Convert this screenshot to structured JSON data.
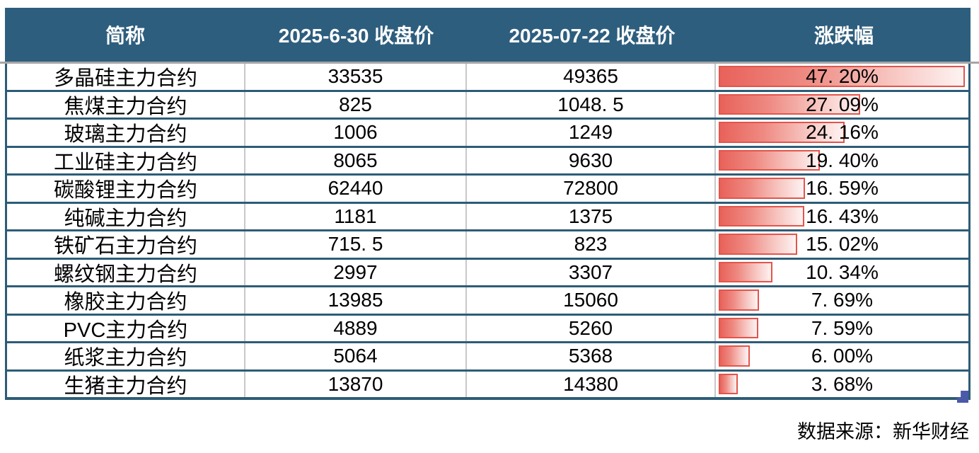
{
  "header": {
    "columns": [
      "简称",
      "2025-6-30 收盘价",
      "2025-07-22 收盘价",
      "涨跌幅"
    ]
  },
  "rows": [
    {
      "name": "多晶硅主力合约",
      "close_0630": "33535",
      "close_0722": "49365",
      "change_display": "47. 20%",
      "change_value": 47.2
    },
    {
      "name": "焦煤主力合约",
      "close_0630": "825",
      "close_0722": "1048. 5",
      "change_display": "27. 09%",
      "change_value": 27.09
    },
    {
      "name": "玻璃主力合约",
      "close_0630": "1006",
      "close_0722": "1249",
      "change_display": "24. 16%",
      "change_value": 24.16
    },
    {
      "name": "工业硅主力合约",
      "close_0630": "8065",
      "close_0722": "9630",
      "change_display": "19. 40%",
      "change_value": 19.4
    },
    {
      "name": "碳酸锂主力合约",
      "close_0630": "62440",
      "close_0722": "72800",
      "change_display": "16. 59%",
      "change_value": 16.59
    },
    {
      "name": "纯碱主力合约",
      "close_0630": "1181",
      "close_0722": "1375",
      "change_display": "16. 43%",
      "change_value": 16.43
    },
    {
      "name": "铁矿石主力合约",
      "close_0630": "715. 5",
      "close_0722": "823",
      "change_display": "15. 02%",
      "change_value": 15.02
    },
    {
      "name": "螺纹钢主力合约",
      "close_0630": "2997",
      "close_0722": "3307",
      "change_display": "10. 34%",
      "change_value": 10.34
    },
    {
      "name": "橡胶主力合约",
      "close_0630": "13985",
      "close_0722": "15060",
      "change_display": "7. 69%",
      "change_value": 7.69
    },
    {
      "name": "PVC主力合约",
      "close_0630": "4889",
      "close_0722": "5260",
      "change_display": "7. 59%",
      "change_value": 7.59
    },
    {
      "name": "纸浆主力合约",
      "close_0630": "5064",
      "close_0722": "5368",
      "change_display": "6. 00%",
      "change_value": 6.0
    },
    {
      "name": "生猪主力合约",
      "close_0630": "13870",
      "close_0722": "14380",
      "change_display": "3. 68%",
      "change_value": 3.68
    }
  ],
  "footer": {
    "source": "数据来源：新华财经"
  },
  "colors": {
    "header_bg": "#2E5E7E",
    "grid_border": "#2D5C77",
    "column_separator": "#C8C8C8",
    "top_gridline": "#A6A6A6",
    "bar_border": "#E4544B",
    "bar_gradient_start": "#E8625A",
    "bar_gradient_end": "#FDF3F2",
    "fill_handle": "#4A59A8"
  },
  "chart_data": {
    "type": "table",
    "title": "",
    "columns": [
      "简称",
      "2025-6-30 收盘价",
      "2025-07-22 收盘价",
      "涨跌幅"
    ],
    "categories": [
      "多晶硅主力合约",
      "焦煤主力合约",
      "玻璃主力合约",
      "工业硅主力合约",
      "碳酸锂主力合约",
      "纯碱主力合约",
      "铁矿石主力合约",
      "螺纹钢主力合约",
      "橡胶主力合约",
      "PVC主力合约",
      "纸浆主力合约",
      "生猪主力合约"
    ],
    "series": [
      {
        "name": "2025-6-30 收盘价",
        "values": [
          33535,
          825,
          1006,
          8065,
          62440,
          1181,
          715.5,
          2997,
          13985,
          4889,
          5064,
          13870
        ]
      },
      {
        "name": "2025-07-22 收盘价",
        "values": [
          49365,
          1048.5,
          1249,
          9630,
          72800,
          1375,
          823,
          3307,
          15060,
          5260,
          5368,
          14380
        ]
      },
      {
        "name": "涨跌幅(%)",
        "values": [
          47.2,
          27.09,
          24.16,
          19.4,
          16.59,
          16.43,
          15.02,
          10.34,
          7.69,
          7.59,
          6.0,
          3.68
        ]
      }
    ],
    "databar": {
      "column": "涨跌幅",
      "style": "red-gradient-left-to-right",
      "scale_min": 0,
      "scale_max": 47.2
    },
    "legend": "none",
    "grid": "on",
    "source_note": "数据来源：新华财经"
  }
}
